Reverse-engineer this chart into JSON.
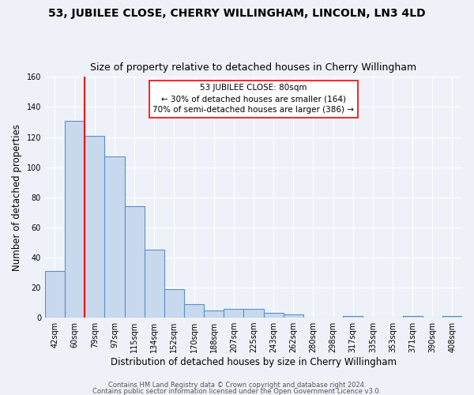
{
  "title": "53, JUBILEE CLOSE, CHERRY WILLINGHAM, LINCOLN, LN3 4LD",
  "subtitle": "Size of property relative to detached houses in Cherry Willingham",
  "xlabel": "Distribution of detached houses by size in Cherry Willingham",
  "ylabel": "Number of detached properties",
  "categories": [
    "42sqm",
    "60sqm",
    "79sqm",
    "97sqm",
    "115sqm",
    "134sqm",
    "152sqm",
    "170sqm",
    "188sqm",
    "207sqm",
    "225sqm",
    "243sqm",
    "262sqm",
    "280sqm",
    "298sqm",
    "317sqm",
    "335sqm",
    "353sqm",
    "371sqm",
    "390sqm",
    "408sqm"
  ],
  "values": [
    31,
    131,
    121,
    107,
    74,
    45,
    19,
    9,
    5,
    6,
    6,
    3,
    2,
    0,
    0,
    1,
    0,
    0,
    1,
    0,
    1
  ],
  "bar_color": "#c9d9ed",
  "bar_edge_color": "#5b8fc9",
  "red_line_index": 2,
  "annotation_line1": "53 JUBILEE CLOSE: 80sqm",
  "annotation_line2": "← 30% of detached houses are smaller (164)",
  "annotation_line3": "70% of semi-detached houses are larger (386) →",
  "ylim": [
    0,
    160
  ],
  "yticks": [
    0,
    20,
    40,
    60,
    80,
    100,
    120,
    140,
    160
  ],
  "footer1": "Contains HM Land Registry data © Crown copyright and database right 2024.",
  "footer2": "Contains public sector information licensed under the Open Government Licence v3.0.",
  "bg_color": "#eef2f8",
  "grid_color": "white",
  "title_fontsize": 10,
  "subtitle_fontsize": 9,
  "tick_fontsize": 7,
  "ylabel_fontsize": 8.5,
  "xlabel_fontsize": 8.5,
  "footer_fontsize": 6,
  "annot_fontsize": 7.5
}
